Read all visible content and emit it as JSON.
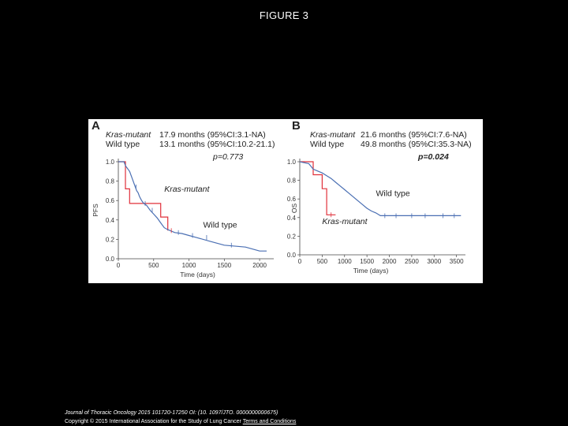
{
  "header": {
    "title": "FIGURE 3"
  },
  "footer": {
    "citation": "Journal of Thoracic Oncology 2015 101720-17250 OI: (10. 1097/JTO. 0000000000675)",
    "copyright": "Copyright © 2015 International Association for the Study of Lung Cancer",
    "terms_link": "Terms and Conditions"
  },
  "colors": {
    "kras_mutant": "#e0303a",
    "wild_type": "#4a6fb3",
    "background": "#000000",
    "panel": "#ffffff"
  },
  "chart_data": [
    {
      "type": "line",
      "panel_letter": "A",
      "ylabel": "PFS",
      "xlabel": "Time (days)",
      "xlim": [
        0,
        2200
      ],
      "ylim": [
        0,
        1.0
      ],
      "xticks": [
        0,
        500,
        1000,
        1500,
        2000
      ],
      "yticks": [
        0.0,
        0.2,
        0.4,
        0.6,
        0.8,
        1.0
      ],
      "ytick_labels": [
        "0.0",
        "0.2",
        "0.4",
        "0.6",
        "0.8",
        "1.0"
      ],
      "legend_lines": [
        {
          "label": "Kras-mutant",
          "text": "17.9 months (95%CI:3.1-NA)"
        },
        {
          "label": "Wild type",
          "text": "13.1 months (95%CI:10.2-21.1)"
        }
      ],
      "pvalue": "p=0.773",
      "annotations": [
        {
          "text": "Kras-mutant",
          "series": "Kras-mutant",
          "x": 650,
          "y": 0.69
        },
        {
          "text": "Wild type",
          "series": "Wild type",
          "x": 1200,
          "y": 0.32
        }
      ],
      "series": [
        {
          "name": "Kras-mutant",
          "color": "#e0303a",
          "x": [
            0,
            100,
            100,
            160,
            160,
            600,
            600,
            700,
            700
          ],
          "y": [
            1.0,
            1.0,
            0.72,
            0.72,
            0.57,
            0.57,
            0.43,
            0.43,
            0.29
          ]
        },
        {
          "name": "Wild type",
          "color": "#4a6fb3",
          "x": [
            0,
            80,
            90,
            100,
            120,
            140,
            160,
            180,
            200,
            220,
            240,
            260,
            280,
            300,
            330,
            360,
            400,
            450,
            500,
            550,
            600,
            650,
            700,
            800,
            900,
            1000,
            1100,
            1300,
            1500,
            1800,
            2000,
            2100
          ],
          "y": [
            1.0,
            1.0,
            0.98,
            0.96,
            0.94,
            0.92,
            0.9,
            0.86,
            0.82,
            0.78,
            0.74,
            0.7,
            0.68,
            0.64,
            0.6,
            0.57,
            0.55,
            0.5,
            0.46,
            0.42,
            0.37,
            0.32,
            0.3,
            0.27,
            0.26,
            0.24,
            0.22,
            0.18,
            0.14,
            0.12,
            0.08,
            0.08
          ]
        }
      ],
      "censor_marks": [
        {
          "series": "Wild type",
          "x": [
            250,
            380,
            480,
            850,
            1050,
            1250,
            1600
          ]
        },
        {
          "series": "Kras-mutant",
          "x": [
            750
          ]
        }
      ]
    },
    {
      "type": "line",
      "panel_letter": "B",
      "ylabel": "OS",
      "xlabel": "Time (days)",
      "xlim": [
        0,
        3700
      ],
      "ylim": [
        0,
        1.0
      ],
      "xticks": [
        0,
        500,
        1000,
        1500,
        2000,
        2500,
        3000,
        3500
      ],
      "yticks": [
        0.0,
        0.2,
        0.4,
        0.6,
        0.8,
        1.0
      ],
      "ytick_labels": [
        "0.0",
        "0.2",
        "0.4",
        "0.6",
        "0.8",
        "1.0"
      ],
      "legend_lines": [
        {
          "label": "Kras-mutant",
          "text": "21.6 months (95%CI:7.6-NA)"
        },
        {
          "label": "Wild type",
          "text": "49.8 months (95%CI:35.3-NA)"
        }
      ],
      "pvalue": "p=0.024",
      "annotations": [
        {
          "text": "Wild type",
          "series": "Wild type",
          "x": 1700,
          "y": 0.63
        },
        {
          "text": "Kras-mutant",
          "series": "Kras-mutant",
          "x": 500,
          "y": 0.33
        }
      ],
      "series": [
        {
          "name": "Kras-mutant",
          "color": "#e0303a",
          "x": [
            0,
            300,
            300,
            500,
            500,
            600,
            600,
            800
          ],
          "y": [
            1.0,
            1.0,
            0.86,
            0.86,
            0.71,
            0.71,
            0.43,
            0.43
          ]
        },
        {
          "name": "Wild type",
          "color": "#4a6fb3",
          "x": [
            0,
            200,
            250,
            300,
            400,
            500,
            600,
            700,
            800,
            900,
            1000,
            1100,
            1200,
            1300,
            1400,
            1500,
            1600,
            1700,
            1800,
            2000,
            2500,
            3000,
            3600
          ],
          "y": [
            1.0,
            0.98,
            0.95,
            0.92,
            0.9,
            0.88,
            0.85,
            0.82,
            0.78,
            0.74,
            0.7,
            0.66,
            0.62,
            0.58,
            0.54,
            0.5,
            0.47,
            0.45,
            0.42,
            0.42,
            0.42,
            0.42,
            0.42
          ]
        }
      ],
      "censor_marks": [
        {
          "series": "Wild type",
          "x": [
            1900,
            2150,
            2500,
            2800,
            3200,
            3450
          ]
        },
        {
          "series": "Kras-mutant",
          "x": [
            700
          ]
        }
      ]
    }
  ]
}
